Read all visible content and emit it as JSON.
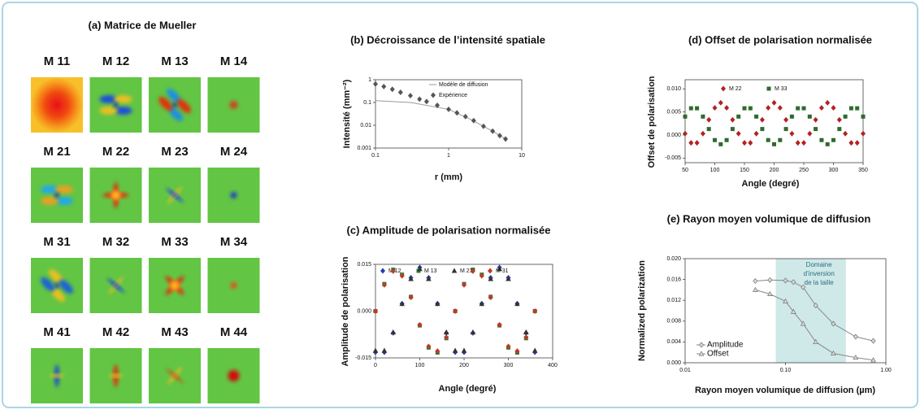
{
  "mueller": {
    "title": "(a) Matrice de Mueller",
    "labels": [
      "M 11",
      "M 12",
      "M 13",
      "M 14",
      "M 21",
      "M 22",
      "M 23",
      "M 24",
      "M 31",
      "M 32",
      "M 33",
      "M 34",
      "M 41",
      "M 42",
      "M 43",
      "M 44"
    ]
  },
  "chart_data": [
    {
      "type": "scatter",
      "title": "(b) Décroissance de l’intensité spatiale",
      "xlabel": "r (mm)",
      "ylabel": "Intensité (mm⁻²)",
      "xlog": true,
      "ylog": true,
      "xlim": [
        0.1,
        10
      ],
      "ylim": [
        0.001,
        1
      ],
      "xticks": [
        0.1,
        1,
        10
      ],
      "yticks": [
        0.001,
        0.01,
        0.1,
        1
      ],
      "series": [
        {
          "name": "Modèle de diffusion",
          "color": "#999999",
          "marker": "line",
          "x": [
            0.1,
            0.3,
            1,
            2,
            4,
            6
          ],
          "values": [
            0.12,
            0.1,
            0.05,
            0.018,
            0.0055,
            0.0025
          ]
        },
        {
          "name": "Expérience",
          "color": "#555555",
          "marker": "diamond",
          "x": [
            0.1,
            0.13,
            0.17,
            0.22,
            0.3,
            0.4,
            0.5,
            0.7,
            1,
            1.3,
            1.7,
            2.2,
            3,
            4,
            5,
            6
          ],
          "values": [
            0.65,
            0.5,
            0.38,
            0.28,
            0.2,
            0.14,
            0.11,
            0.075,
            0.05,
            0.035,
            0.024,
            0.016,
            0.009,
            0.0055,
            0.0035,
            0.0025
          ]
        }
      ]
    },
    {
      "type": "scatter",
      "title": "(c) Amplitude de polarisation normalisée",
      "xlabel": "Angle (degré)",
      "ylabel": "Amplitude de polarisation",
      "xlim": [
        0,
        400
      ],
      "ylim": [
        -0.015,
        0.015
      ],
      "xticks": [
        0,
        100,
        200,
        300,
        400
      ],
      "yticks": [
        -0.015,
        {
          "value": 0,
          "label": "0.000"
        },
        0.015
      ],
      "x": [
        0,
        20,
        40,
        60,
        80,
        100,
        120,
        140,
        160,
        180,
        200,
        220,
        240,
        260,
        280,
        300,
        320,
        340,
        360
      ],
      "series": [
        {
          "name": "M 12",
          "color": "#2a3aa8",
          "marker": "diamond",
          "values": [
            -0.0132,
            -0.0132,
            -0.007,
            0.0024,
            0.0107,
            0.014,
            0.0107,
            0.0024,
            -0.007,
            -0.0132,
            -0.0132,
            -0.007,
            0.0024,
            0.0107,
            0.014,
            0.0107,
            0.0024,
            -0.007,
            -0.0132
          ]
        },
        {
          "name": "M 13",
          "color": "#2e7d32",
          "marker": "square",
          "values": [
            0,
            0.0087,
            0.0133,
            0.0117,
            0.0046,
            -0.0046,
            -0.0117,
            -0.0133,
            -0.0087,
            0,
            0.0087,
            0.0133,
            0.0117,
            0.0046,
            -0.0046,
            -0.0117,
            -0.0133,
            -0.0087,
            0
          ]
        },
        {
          "name": "M 21",
          "color": "#333333",
          "marker": "triangle",
          "values": [
            -0.0127,
            -0.0127,
            -0.0068,
            0.0023,
            0.0103,
            0.0135,
            0.0103,
            0.0023,
            -0.0068,
            -0.0127,
            -0.0127,
            -0.0068,
            0.0023,
            0.0103,
            0.0135,
            0.0103,
            0.0023,
            -0.0068,
            -0.0127
          ]
        },
        {
          "name": "M 31",
          "color": "#c0392b",
          "marker": "diamond",
          "values": [
            0,
            0.0084,
            0.0128,
            0.0113,
            0.0044,
            -0.0044,
            -0.0113,
            -0.0128,
            -0.0084,
            0,
            0.0084,
            0.0128,
            0.0113,
            0.0044,
            -0.0044,
            -0.0113,
            -0.0128,
            -0.0084,
            0
          ]
        }
      ]
    },
    {
      "type": "scatter",
      "title": "(d) Offset de polarisation normalisée",
      "xlabel": "Angle (degré)",
      "ylabel": "Offset de polarisation",
      "xlim": [
        50,
        350
      ],
      "ylim": [
        -0.006,
        0.012
      ],
      "xticks": [
        50,
        100,
        150,
        200,
        250,
        300,
        350
      ],
      "yticks": [
        -0.005,
        {
          "value": 0,
          "label": "0.000"
        },
        0.005,
        {
          "value": 0.01,
          "label": "0.010"
        }
      ],
      "x": [
        50,
        60,
        70,
        80,
        90,
        100,
        110,
        120,
        130,
        140,
        150,
        160,
        170,
        180,
        190,
        200,
        210,
        220,
        230,
        240,
        250,
        260,
        270,
        280,
        290,
        300,
        310,
        320,
        330,
        340,
        350
      ],
      "series": [
        {
          "name": "M 22",
          "color": "#b22222",
          "marker": "diamond",
          "values": [
            0.0003,
            -0.0017,
            -0.0017,
            0.0003,
            0.0033,
            0.0059,
            0.007,
            0.0059,
            0.0033,
            0.0003,
            -0.0017,
            -0.0017,
            0.0003,
            0.0033,
            0.0059,
            0.007,
            0.0059,
            0.0033,
            0.0003,
            -0.0017,
            -0.0017,
            0.0003,
            0.0033,
            0.0059,
            0.007,
            0.0059,
            0.0033,
            0.0003,
            -0.0017,
            -0.0017,
            0.0003
          ]
        },
        {
          "name": "M 33",
          "color": "#2e6b2e",
          "marker": "square",
          "values": [
            0.004,
            0.0058,
            0.0058,
            0.004,
            0.0013,
            -0.0011,
            -0.002,
            -0.0011,
            0.0013,
            0.004,
            0.0058,
            0.0058,
            0.004,
            0.0013,
            -0.0011,
            -0.002,
            -0.0011,
            0.0013,
            0.004,
            0.0058,
            0.0058,
            0.004,
            0.0013,
            -0.0011,
            -0.002,
            -0.0011,
            0.0013,
            0.004,
            0.0058,
            0.0058,
            0.004
          ]
        }
      ]
    },
    {
      "type": "scatter",
      "title": "(e) Rayon moyen volumique de diffusion",
      "xlabel": "Rayon moyen volumique de diffusion (µm)",
      "ylabel": "Normalized polarization",
      "xlog": true,
      "xlim": [
        0.01,
        1
      ],
      "ylim": [
        0,
        0.02
      ],
      "xticks": [
        0.01,
        {
          "value": 0.1,
          "label": "0.10"
        },
        {
          "value": 1,
          "label": "1.00"
        }
      ],
      "yticks": [
        {
          "value": 0,
          "label": "0.000"
        },
        0.004,
        0.008,
        0.012,
        0.016,
        {
          "value": 0.02,
          "label": "0.020"
        }
      ],
      "band": [
        0.08,
        0.4
      ],
      "band_color": "#cfe8e8",
      "annotation": [
        "Domaine",
        "d’inversion",
        "de la taille"
      ],
      "x": [
        0.05,
        0.07,
        0.1,
        0.12,
        0.15,
        0.2,
        0.3,
        0.5,
        0.75
      ],
      "series": [
        {
          "name": "Amplitude",
          "color": "#888888",
          "marker": "diamond",
          "line": true,
          "values": [
            0.0157,
            0.0159,
            0.0158,
            0.0155,
            0.0145,
            0.011,
            0.0075,
            0.005,
            0.0042
          ]
        },
        {
          "name": "Offset",
          "color": "#888888",
          "marker": "triangle",
          "line": true,
          "values": [
            0.014,
            0.0132,
            0.0118,
            0.0098,
            0.0075,
            0.004,
            0.0018,
            0.001,
            0.0005
          ]
        }
      ]
    }
  ]
}
